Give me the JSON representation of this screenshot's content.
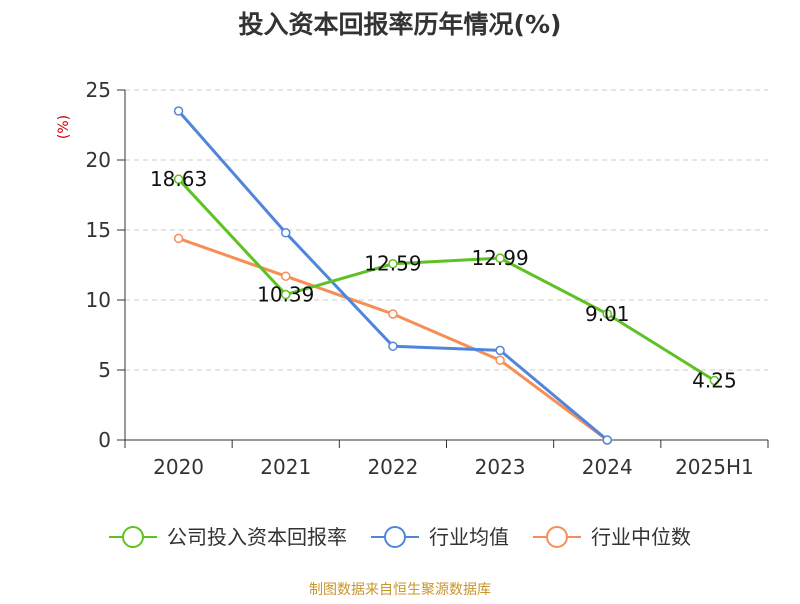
{
  "chart_data": {
    "type": "line",
    "title": "投入资本回报率历年情况(%)",
    "ylabel": "(%)",
    "xlabel": "",
    "categories": [
      "2020",
      "2021",
      "2022",
      "2023",
      "2024",
      "2025H1"
    ],
    "ylim": [
      0,
      25
    ],
    "yticks": [
      0,
      5,
      10,
      15,
      20,
      25
    ],
    "grid": true,
    "legend_position": "bottom",
    "series": [
      {
        "name": "公司投入资本回报率",
        "color": "#5ec223",
        "values": [
          18.63,
          10.39,
          12.59,
          12.99,
          9.01,
          4.25
        ],
        "labels": [
          "18.63",
          "10.39",
          "12.59",
          "12.99",
          "9.01",
          "4.25"
        ]
      },
      {
        "name": "行业均值",
        "color": "#4f86dc",
        "values": [
          23.5,
          14.8,
          6.7,
          6.4,
          0,
          null
        ]
      },
      {
        "name": "行业中位数",
        "color": "#f68e56",
        "values": [
          14.4,
          11.7,
          9.0,
          5.7,
          0,
          null
        ]
      }
    ]
  },
  "source_note": "制图数据来自恒生聚源数据库",
  "colors": {
    "axis": "#333333",
    "grid": "#cccccc",
    "ylabel": "#cc0000",
    "source": "#c8962a"
  }
}
